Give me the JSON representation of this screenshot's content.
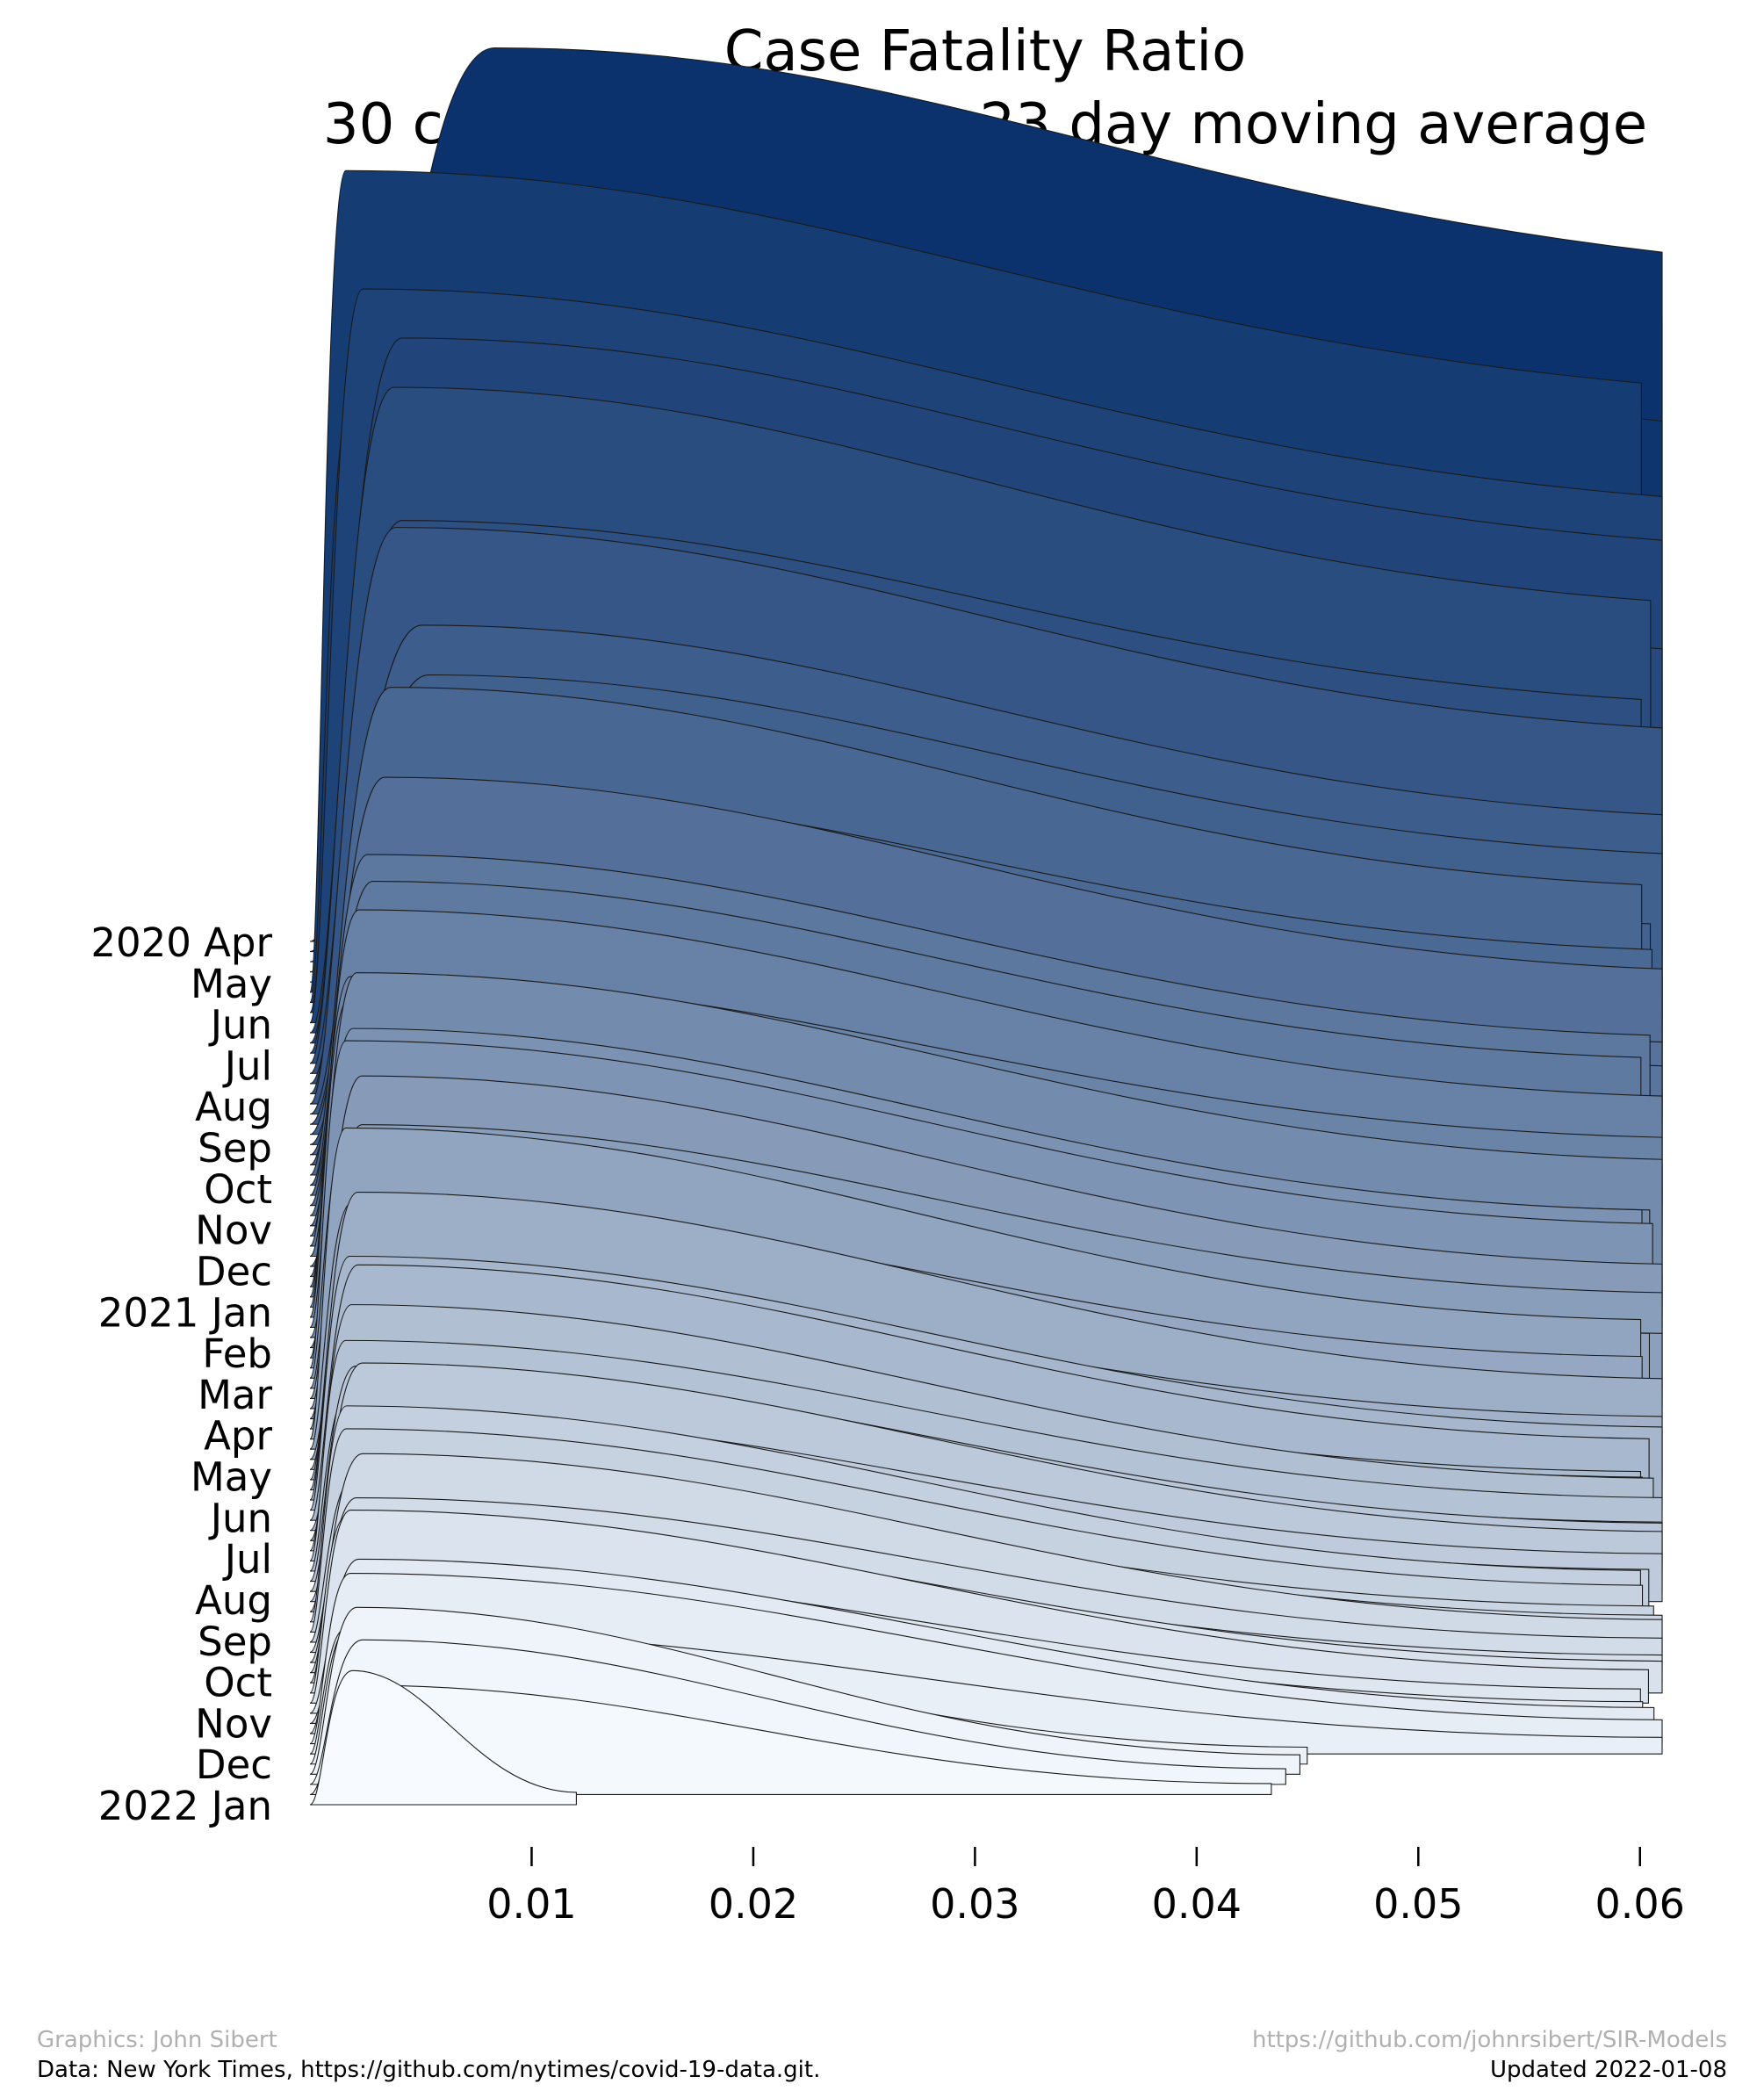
{
  "chart_data": {
    "type": "area",
    "title": "Case Fatality Ratio",
    "subtitle": "30 counties, 646 days, 23 day moving average",
    "xlabel": "",
    "ylabel": "",
    "xlim": [
      0.0,
      0.061
    ],
    "x_ticks": [
      0.01,
      0.02,
      0.03,
      0.04,
      0.05,
      0.06
    ],
    "x_tick_labels": [
      "0.01",
      "0.02",
      "0.03",
      "0.04",
      "0.05",
      "0.06"
    ],
    "y_tick_labels": [
      "2020 Apr",
      "May",
      "Jun",
      "Jul",
      "Aug",
      "Sep",
      "Oct",
      "Nov",
      "Dec",
      "2021 Jan",
      "Feb",
      "Mar",
      "Apr",
      "May",
      "Jun",
      "Jul",
      "Aug",
      "Sep",
      "Oct",
      "Nov",
      "Dec",
      "2022 Jan"
    ],
    "grid": false,
    "legend": "none",
    "colormap": "Blues",
    "color_range": [
      "#f7fbff",
      "#08306b"
    ],
    "series_description": "ridgeline of daily CFR distributions across counties; each stacked layer is one day",
    "ridge_peak_x": [
      0.008,
      0.002,
      0.004,
      0.004,
      0.005,
      0.004,
      0.003,
      0.003,
      0.002,
      0.002,
      0.002,
      0.002,
      0.002,
      0.002,
      0.002,
      0.002,
      0.002,
      0.002,
      0.002,
      0.002,
      0.002,
      0.002
    ],
    "ridge_max_x": [
      0.061,
      0.061,
      0.061,
      0.061,
      0.061,
      0.061,
      0.061,
      0.061,
      0.061,
      0.061,
      0.061,
      0.061,
      0.061,
      0.061,
      0.061,
      0.061,
      0.061,
      0.061,
      0.061,
      0.061,
      0.044,
      0.013
    ]
  },
  "credits": {
    "graphics": "Graphics: John Sibert",
    "repo": "https://github.com/johnrsibert/SIR-Models",
    "data": "Data: New York Times, https://github.com/nytimes/covid-19-data.git.",
    "updated": "Updated 2022-01-08"
  }
}
